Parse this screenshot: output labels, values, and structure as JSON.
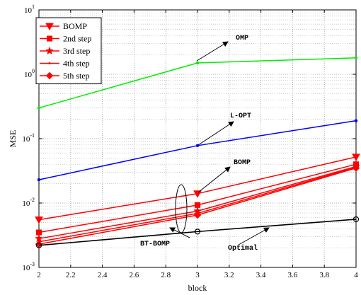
{
  "chart_data": {
    "type": "line",
    "xlabel": "block",
    "ylabel": "MSE",
    "xlim": [
      2,
      4
    ],
    "ylim": [
      0.001,
      10
    ],
    "yscale": "log",
    "grid": "major and minor",
    "legend_placement": "top-left",
    "x_ticks": [
      "2",
      "2.2",
      "2.4",
      "2.6",
      "2.8",
      "3",
      "3.2",
      "3.4",
      "3.6",
      "3.8",
      "4"
    ],
    "y_ticks": [
      {
        "base": "10",
        "exp": "1"
      },
      {
        "base": "10",
        "exp": "0"
      },
      {
        "base": "10",
        "exp": "-1"
      },
      {
        "base": "10",
        "exp": "-2"
      },
      {
        "base": "10",
        "exp": "-3"
      }
    ],
    "x": [
      2,
      3,
      4
    ],
    "series": [
      {
        "name": "BOMP",
        "color": "#ff0000",
        "marker": "triangle-down",
        "values": [
          0.0055,
          0.014,
          0.052
        ]
      },
      {
        "name": "2nd step",
        "color": "#ff0000",
        "marker": "square",
        "values": [
          0.0035,
          0.0093,
          0.04
        ]
      },
      {
        "name": "3rd step",
        "color": "#ff0000",
        "marker": "star",
        "values": [
          0.0028,
          0.0075,
          0.037
        ]
      },
      {
        "name": "4th step",
        "color": "#ff0000",
        "marker": "point",
        "values": [
          0.0025,
          0.0069,
          0.036
        ]
      },
      {
        "name": "5th step",
        "color": "#ff0000",
        "marker": "diamond",
        "values": [
          0.0023,
          0.0065,
          0.035
        ]
      },
      {
        "color": "#00ee00",
        "marker": "dot",
        "values": [
          0.3,
          1.5,
          1.8
        ]
      },
      {
        "color": "#0000ff",
        "marker": "dot",
        "values": [
          0.023,
          0.078,
          0.19
        ]
      },
      {
        "color": "#000000",
        "marker": "circle",
        "values": [
          0.0022,
          0.0036,
          0.0056
        ]
      }
    ],
    "annotations": [
      "OMP",
      "L-OPT",
      "BOMP",
      "BT-BOMP",
      "Optimal"
    ]
  }
}
